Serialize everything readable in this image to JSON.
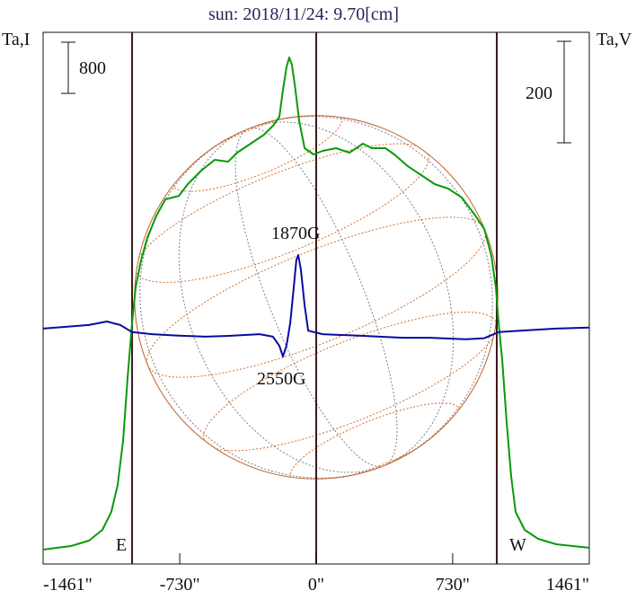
{
  "chart_data": {
    "type": "line",
    "title": "sun: 2018/11/24: 9.70[cm]",
    "ylabel_left": "Ta,I",
    "ylabel_right": "Ta,V",
    "xlim": [
      -1461,
      1461
    ],
    "ylim_I": [
      0,
      8309
    ],
    "ylim_V": [
      -464,
      584
    ],
    "x_ticks": [
      {
        "value": -1461,
        "label": "-1461\""
      },
      {
        "value": -730,
        "label": "-730\""
      },
      {
        "value": 0,
        "label": "0\""
      },
      {
        "value": 730,
        "label": "730\""
      },
      {
        "value": 1461,
        "label": "1461\""
      }
    ],
    "limb_lines": [
      -985,
      0,
      966
    ],
    "solar_radius_arcsec": 972,
    "scale_bars": {
      "I": {
        "value": 800,
        "label": "800"
      },
      "V": {
        "value": 200,
        "label": "200"
      }
    },
    "limb_labels": {
      "east": "E",
      "west": "W"
    },
    "annotations": [
      {
        "text": "1870G",
        "x": -115,
        "series": "V"
      },
      {
        "text": "2550G",
        "x": -175,
        "series": "V"
      }
    ],
    "colors": {
      "I": "#0a9a0a",
      "V": "#0a0aa0",
      "disk": "#c0602a",
      "grid_lat": "#d07030",
      "grid_lon": "#808080",
      "limb": "#3a1a1a"
    },
    "series": [
      {
        "name": "Ta,I",
        "x": [
          -1461,
          -1312,
          -1216,
          -1144,
          -1096,
          -1062,
          -1033,
          -1009,
          -985,
          -966,
          -937,
          -904,
          -855,
          -807,
          -735,
          -687,
          -615,
          -543,
          -471,
          -423,
          -351,
          -279,
          -231,
          -197,
          -178,
          -159,
          -144,
          -130,
          -111,
          -91,
          -62,
          -14,
          34,
          106,
          178,
          250,
          298,
          370,
          418,
          490,
          562,
          634,
          706,
          779,
          851,
          899,
          937,
          961,
          976,
          995,
          1019,
          1043,
          1067,
          1115,
          1187,
          1283,
          1461
        ],
        "y": [
          225,
          281,
          365,
          533,
          814,
          1235,
          1937,
          2919,
          3761,
          4323,
          4744,
          5095,
          5446,
          5698,
          5753,
          5937,
          6147,
          6316,
          6288,
          6428,
          6568,
          6709,
          6849,
          6989,
          7410,
          7761,
          7916,
          7803,
          7410,
          6919,
          6498,
          6400,
          6456,
          6498,
          6428,
          6568,
          6498,
          6498,
          6400,
          6217,
          6077,
          5937,
          5867,
          5726,
          5446,
          5235,
          4814,
          4323,
          3761,
          3200,
          2218,
          1375,
          814,
          533,
          393,
          309,
          253
        ]
      },
      {
        "name": "Ta,V",
        "x": [
          -1461,
          -1216,
          -1120,
          -1048,
          -985,
          -879,
          -735,
          -591,
          -447,
          -303,
          -231,
          -197,
          -178,
          -159,
          -139,
          -120,
          -106,
          -96,
          -82,
          -62,
          -43,
          34,
          226,
          466,
          610,
          803,
          899,
          976,
          1091,
          1283,
          1461
        ],
        "y": [
          0,
          7,
          14,
          7,
          -7,
          -11,
          -14,
          -16,
          -14,
          -11,
          -16,
          -34,
          -55,
          -34,
          11,
          81,
          135,
          145,
          117,
          46,
          -4,
          -11,
          -14,
          -18,
          -18,
          -21,
          -19,
          -7,
          -4,
          0,
          2
        ]
      }
    ]
  }
}
